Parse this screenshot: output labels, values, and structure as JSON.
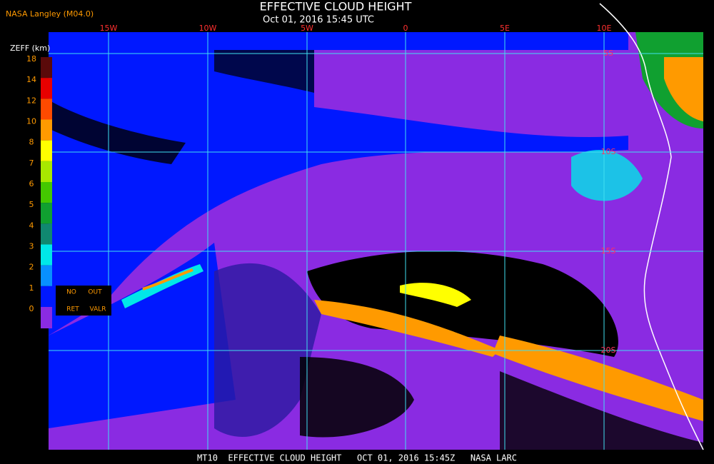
{
  "header": {
    "credit": "NASA Langley (M04.0)",
    "title": "EFFECTIVE CLOUD HEIGHT",
    "subtitle": "Oct 01, 2016 15:45 UTC"
  },
  "map": {
    "lon_labels": [
      "15W",
      "10W",
      "5W",
      "0",
      "5E",
      "10E"
    ],
    "lat_labels": [
      "5S",
      "10S",
      "15S",
      "20S"
    ]
  },
  "legend": {
    "title": "ZEFF (km)",
    "labels": [
      "18",
      "14",
      "12",
      "10",
      "8",
      "7",
      "6",
      "5",
      "4",
      "3",
      "2",
      "1",
      "0"
    ],
    "colors": [
      "#5a0a0a",
      "#e80000",
      "#ff4a00",
      "#ff9a00",
      "#ffff00",
      "#a8e800",
      "#44c800",
      "#10a030",
      "#108870",
      "#00e8e8",
      "#0890ff",
      "#0018ff",
      "#8a2be2"
    ],
    "notes": [
      "NO",
      "OUT",
      "RET",
      "VALR"
    ]
  },
  "footer": {
    "caption": "MT10  EFFECTIVE CLOUD HEIGHT   OCT 01, 2016 15:45Z   NASA LARC"
  }
}
